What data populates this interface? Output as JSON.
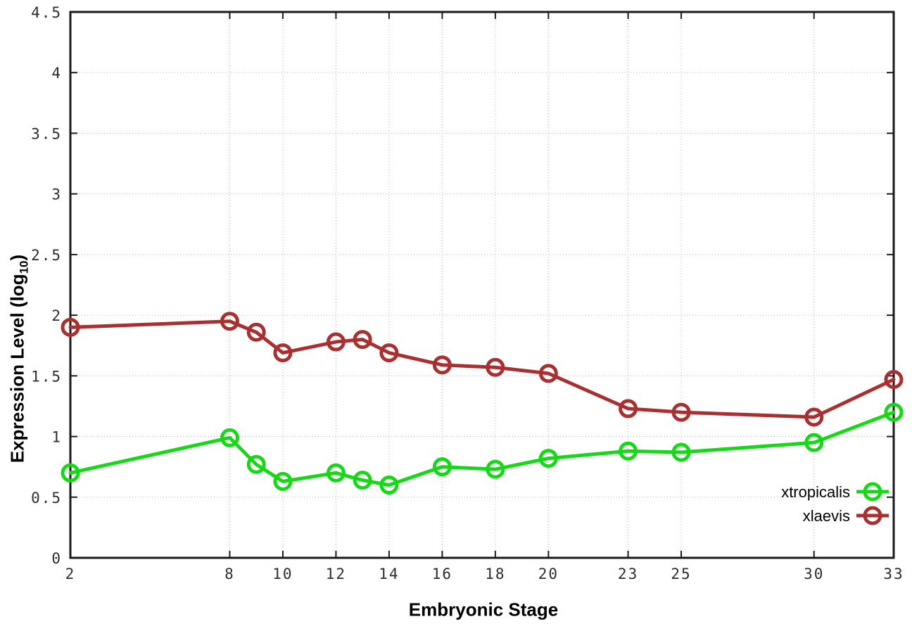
{
  "chart_data": {
    "type": "line",
    "title": "",
    "xlabel": "Embryonic Stage",
    "ylabel_main": "Expression Level (log",
    "ylabel_sub": "10",
    "ylabel_close": ")",
    "xlim": [
      2,
      33
    ],
    "ylim": [
      0,
      4.5
    ],
    "x_ticks": [
      2,
      8,
      10,
      12,
      14,
      16,
      18,
      20,
      23,
      25,
      30,
      33
    ],
    "y_ticks": [
      0,
      0.5,
      1,
      1.5,
      2,
      2.5,
      3,
      3.5,
      4,
      4.5
    ],
    "grid": true,
    "legend_position": "bottom-right",
    "x": [
      2,
      8,
      9,
      10,
      12,
      13,
      14,
      16,
      18,
      20,
      23,
      25,
      30,
      33
    ],
    "series": [
      {
        "name": "xtropicalis",
        "color": "#17d817",
        "values": [
          0.7,
          0.99,
          0.77,
          0.63,
          0.7,
          0.64,
          0.6,
          0.75,
          0.73,
          0.82,
          0.88,
          0.87,
          0.95,
          1.2
        ]
      },
      {
        "name": "xlaevis",
        "color": "#a93030",
        "values": [
          1.9,
          1.95,
          1.86,
          1.69,
          1.78,
          1.8,
          1.69,
          1.59,
          1.57,
          1.52,
          1.23,
          1.2,
          1.16,
          1.47
        ]
      }
    ]
  },
  "style": {
    "border_color": "#1a1a1a",
    "grid_color": "#b5b5b5",
    "tick_label_color": "#2d2d2d",
    "background": "#ffffff"
  }
}
